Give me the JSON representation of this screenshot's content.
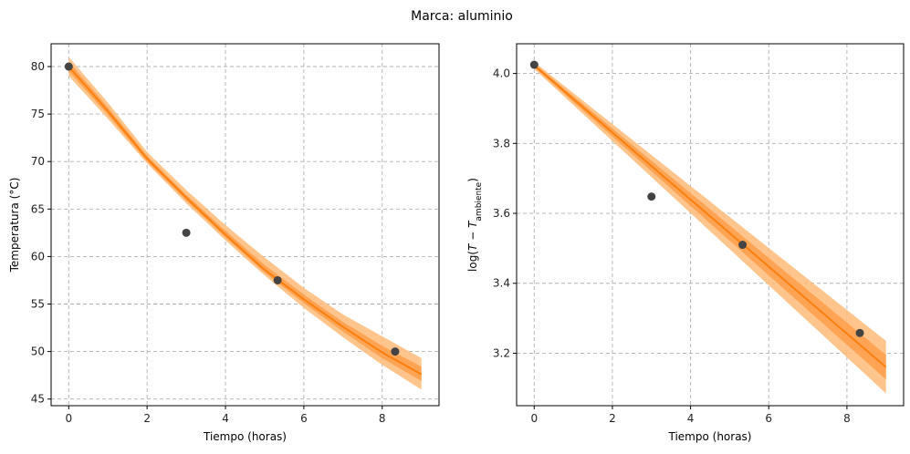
{
  "figure_title": "Marca: aluminio",
  "colors": {
    "band_outer": "#ffbb78",
    "band_inner": "#ff9e4a",
    "line": "#ff7f0e",
    "points": "#444444"
  },
  "chart_data": [
    {
      "type": "line",
      "xlabel": "Tiempo (horas)",
      "ylabel": "Temperatura (°C)",
      "xlim": [
        -0.45,
        9.45
      ],
      "ylim": [
        44.3,
        82.4
      ],
      "xticks": [
        0,
        2,
        4,
        6,
        8
      ],
      "yticks": [
        45,
        50,
        55,
        60,
        65,
        70,
        75,
        80
      ],
      "grid": true,
      "points": {
        "x": [
          0,
          3,
          5.33,
          8.33
        ],
        "y": [
          80.0,
          62.5,
          57.5,
          50.0
        ]
      },
      "fit": {
        "x": [
          0,
          1,
          2,
          3,
          4,
          5,
          6,
          7,
          8,
          9
        ],
        "y": [
          80.0,
          75.3,
          70.3,
          66.2,
          62.3,
          58.6,
          55.5,
          52.6,
          49.9,
          47.6
        ],
        "band_outer_low": [
          79.0,
          74.5,
          69.8,
          65.6,
          61.7,
          58.0,
          54.6,
          51.5,
          48.6,
          46.0
        ],
        "band_outer_high": [
          81.0,
          76.2,
          71.0,
          67.0,
          63.3,
          59.9,
          56.7,
          53.9,
          51.6,
          49.3
        ],
        "band_inner_low": [
          79.5,
          74.9,
          70.0,
          65.9,
          62.0,
          58.3,
          55.1,
          52.1,
          49.3,
          46.9
        ],
        "band_inner_high": [
          80.5,
          75.7,
          70.6,
          66.5,
          62.7,
          59.1,
          56.0,
          53.1,
          50.6,
          48.4
        ]
      }
    },
    {
      "type": "line",
      "xlabel": "Tiempo (horas)",
      "ylabel_main": "log(",
      "ylabel_var": "T",
      "ylabel_minus": " − ",
      "ylabel_sym": "T",
      "ylabel_sub": "ambiente",
      "ylabel_close": ")",
      "xlim": [
        -0.45,
        9.45
      ],
      "ylim": [
        3.05,
        4.085
      ],
      "xticks": [
        0,
        2,
        4,
        6,
        8
      ],
      "yticks": [
        3.2,
        3.4,
        3.6,
        3.8,
        4.0
      ],
      "ytick_labels": [
        "3.2",
        "3.4",
        "3.6",
        "3.8",
        "4.0"
      ],
      "grid": true,
      "points": {
        "x": [
          0,
          3,
          5.33,
          8.33
        ],
        "y": [
          4.025,
          3.648,
          3.51,
          3.258
        ]
      },
      "fit": {
        "x": [
          0,
          9
        ],
        "y": [
          4.023,
          3.16
        ],
        "band_outer_low": [
          4.013,
          3.085
        ],
        "band_outer_high": [
          4.033,
          3.235
        ],
        "band_inner_low": [
          4.018,
          3.125
        ],
        "band_inner_high": [
          4.028,
          3.195
        ]
      }
    }
  ]
}
